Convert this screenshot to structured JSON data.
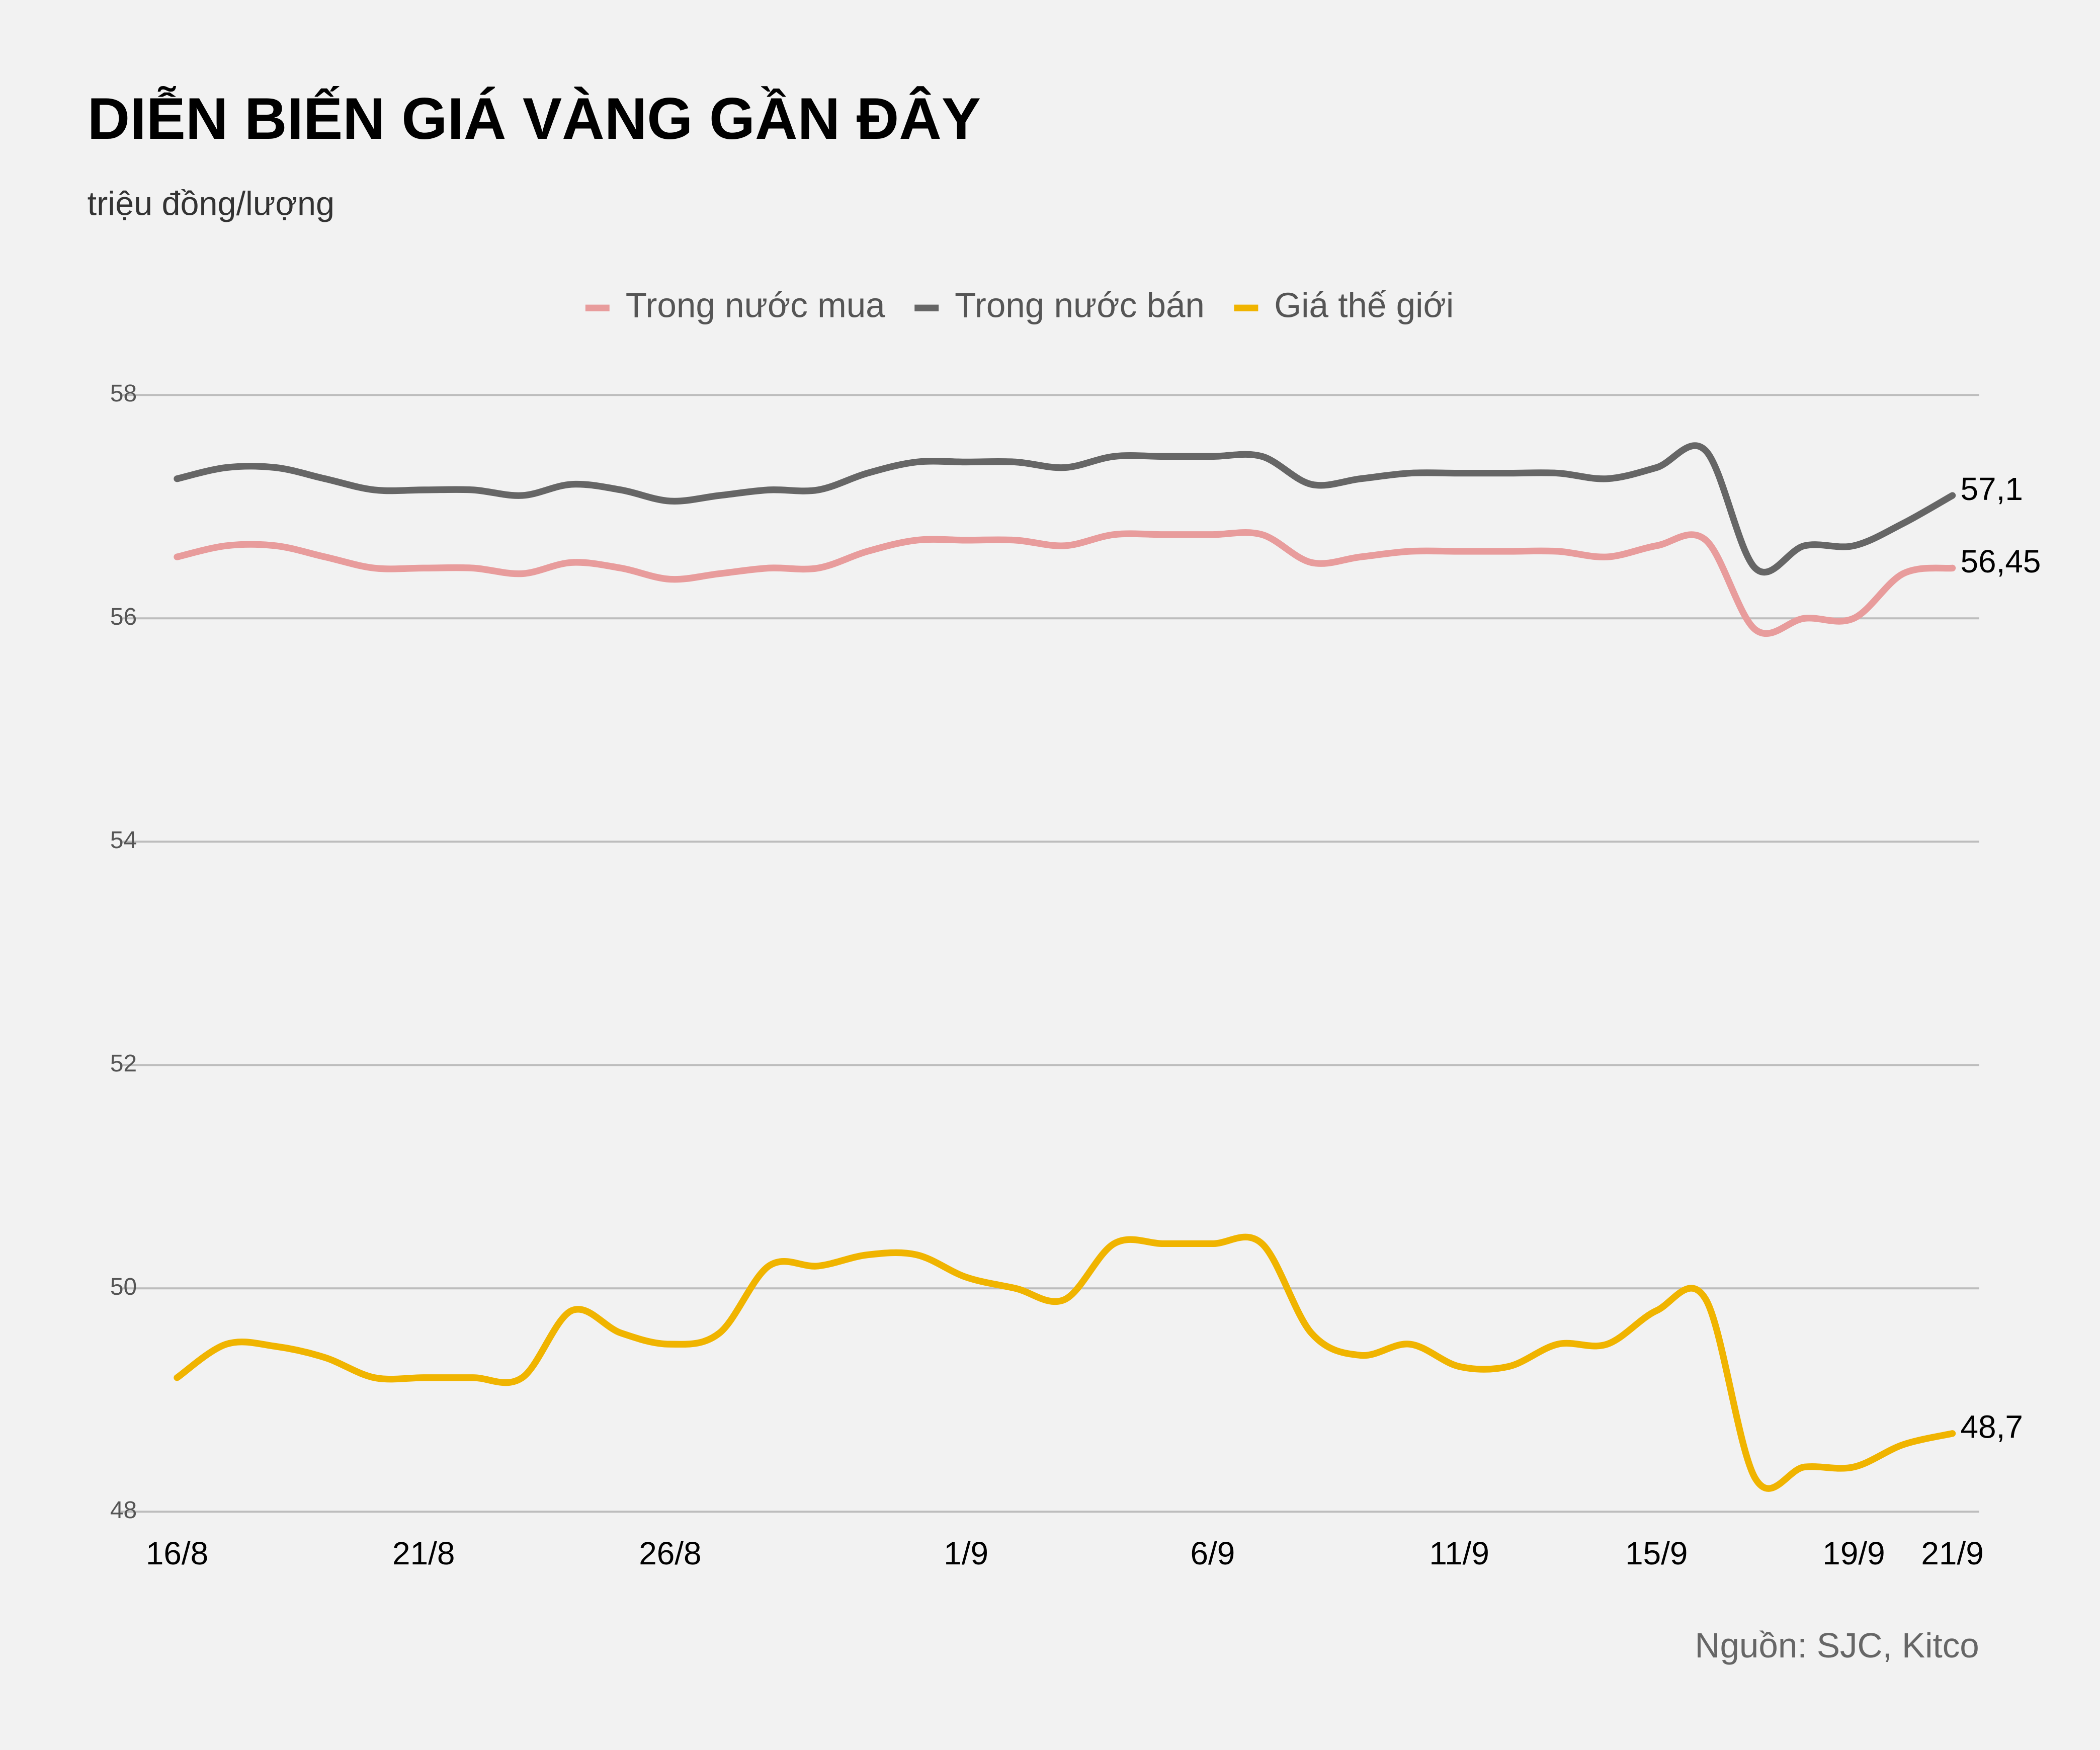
{
  "chart_data": {
    "type": "line",
    "title": "DIỄN BIẾN GIÁ VÀNG GẦN ĐÂY",
    "subtitle": "triệu đồng/lượng",
    "source": "Nguồn: SJC, Kitco",
    "categories": [
      "16/8",
      null,
      null,
      null,
      null,
      "21/8",
      null,
      null,
      null,
      null,
      "26/8",
      null,
      null,
      null,
      null,
      null,
      "1/9",
      null,
      null,
      null,
      null,
      "6/9",
      null,
      null,
      null,
      null,
      "11/9",
      null,
      null,
      null,
      "15/9",
      null,
      null,
      null,
      "19/9",
      null,
      "21/9"
    ],
    "ylim": [
      48,
      58
    ],
    "yticks": [
      48,
      50,
      52,
      54,
      56,
      58
    ],
    "grid": true,
    "legend": "top",
    "series": [
      {
        "name": "Trong nước mua",
        "color": "#e89c9c",
        "values": [
          56.55,
          56.65,
          56.65,
          56.55,
          56.45,
          56.45,
          56.45,
          56.4,
          56.5,
          56.45,
          56.35,
          56.4,
          56.45,
          56.45,
          56.6,
          56.7,
          56.7,
          56.7,
          56.65,
          56.75,
          56.75,
          56.75,
          56.75,
          56.5,
          56.55,
          56.6,
          56.6,
          56.6,
          56.6,
          56.55,
          56.65,
          56.7,
          55.9,
          56.0,
          56.0,
          56.4,
          56.45
        ],
        "value_labels": [
          null,
          null,
          null,
          null,
          null,
          null,
          null,
          null,
          null,
          null,
          null,
          null,
          null,
          null,
          null,
          null,
          null,
          null,
          null,
          null,
          null,
          null,
          null,
          null,
          null,
          null,
          null,
          null,
          null,
          null,
          null,
          null,
          null,
          null,
          null,
          null,
          "56,45"
        ]
      },
      {
        "name": "Trong nước bán",
        "color": "#666666",
        "values": [
          57.25,
          57.35,
          57.35,
          57.25,
          57.15,
          57.15,
          57.15,
          57.1,
          57.2,
          57.15,
          57.05,
          57.1,
          57.15,
          57.15,
          57.3,
          57.4,
          57.4,
          57.4,
          57.35,
          57.45,
          57.45,
          57.45,
          57.45,
          57.2,
          57.25,
          57.3,
          57.3,
          57.3,
          57.3,
          57.25,
          57.35,
          57.5,
          56.45,
          56.65,
          56.65,
          56.85,
          57.1
        ],
        "value_labels": [
          null,
          null,
          null,
          null,
          null,
          null,
          null,
          null,
          null,
          null,
          null,
          null,
          null,
          null,
          null,
          null,
          null,
          null,
          null,
          null,
          null,
          null,
          null,
          null,
          null,
          null,
          null,
          null,
          null,
          null,
          null,
          null,
          null,
          null,
          null,
          null,
          "57,1"
        ]
      },
      {
        "name": "Giá thế giới",
        "color": "#f0b400",
        "values": [
          49.2,
          49.5,
          49.48,
          49.38,
          49.2,
          49.2,
          49.2,
          49.2,
          49.8,
          49.6,
          49.5,
          49.6,
          50.2,
          50.2,
          50.3,
          50.3,
          50.1,
          50.0,
          49.9,
          50.4,
          50.4,
          50.4,
          50.4,
          49.6,
          49.4,
          49.5,
          49.3,
          49.3,
          49.5,
          49.5,
          49.8,
          49.9,
          48.3,
          48.4,
          48.4,
          48.6,
          48.7
        ],
        "value_labels": [
          null,
          null,
          null,
          null,
          null,
          null,
          null,
          null,
          null,
          null,
          null,
          null,
          null,
          null,
          null,
          null,
          null,
          null,
          null,
          null,
          null,
          null,
          null,
          null,
          null,
          null,
          null,
          null,
          null,
          null,
          null,
          null,
          null,
          null,
          null,
          null,
          "48,7"
        ]
      }
    ]
  }
}
